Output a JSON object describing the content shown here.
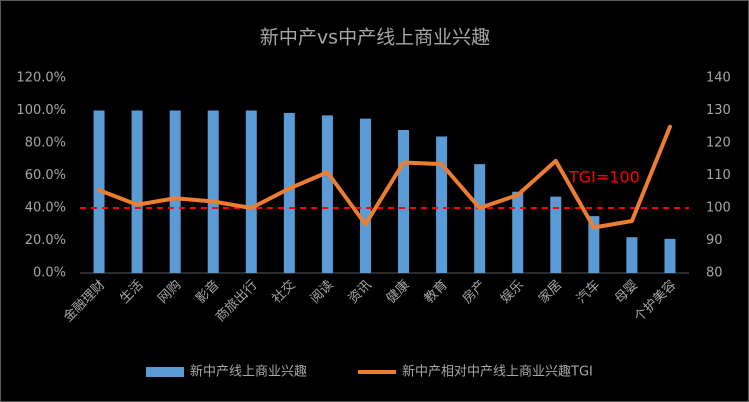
{
  "chart_data": {
    "type": "bar-line",
    "title": "新中产vs中产线上商业兴趣",
    "categories": [
      "金融理财",
      "生活",
      "网购",
      "影音",
      "商旅出行",
      "社交",
      "阅读",
      "资讯",
      "健康",
      "教育",
      "房产",
      "娱乐",
      "家居",
      "汽车",
      "母婴",
      "个护美容"
    ],
    "series": [
      {
        "name": "新中产线上商业兴趣",
        "type": "bar",
        "color": "#5b9bd5",
        "values": [
          100,
          100,
          100,
          100,
          100,
          98.5,
          97,
          95,
          88,
          84,
          67,
          50,
          47,
          35,
          22,
          21
        ]
      },
      {
        "name": "新中产相对中产线上商业兴趣TGI",
        "type": "line",
        "axis": "y2",
        "color": "#ed7d31",
        "values": [
          105.5,
          101,
          103,
          102,
          100,
          106,
          111,
          95,
          114,
          113.5,
          100,
          104,
          114.5,
          94,
          96,
          125
        ]
      }
    ],
    "ylim": [
      0,
      120
    ],
    "yticks": [
      {
        "value": 0,
        "label": "0.0%"
      },
      {
        "value": 20,
        "label": "20.0%"
      },
      {
        "value": 40,
        "label": "40.0%"
      },
      {
        "value": 60,
        "label": "60.0%"
      },
      {
        "value": 80,
        "label": "80.0%"
      },
      {
        "value": 100,
        "label": "100.0%"
      },
      {
        "value": 120,
        "label": "120.0%"
      }
    ],
    "y2lim": [
      80,
      140
    ],
    "y2ticks": [
      80,
      90,
      100,
      110,
      120,
      130,
      140
    ],
    "reference_line": {
      "value": 100,
      "axis": "y2",
      "label": "TGI=100",
      "color": "#ff0000"
    }
  }
}
